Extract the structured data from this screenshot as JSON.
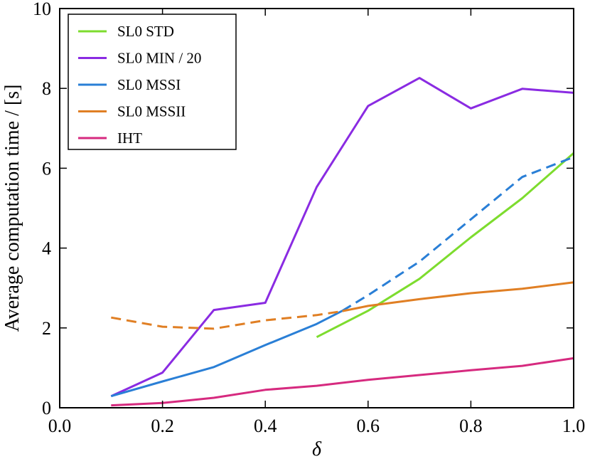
{
  "chart_data": {
    "type": "line",
    "title": "",
    "xlabel": "δ",
    "ylabel": "Average computation time / [s]",
    "xlim": [
      0.0,
      1.0
    ],
    "ylim": [
      0,
      10
    ],
    "xticks": [
      0.0,
      0.2,
      0.4,
      0.6,
      0.8,
      1.0
    ],
    "xtick_labels": [
      "0.0",
      "0.2",
      "0.4",
      "0.6",
      "0.8",
      "1.0"
    ],
    "yticks": [
      0,
      2,
      4,
      6,
      8,
      10
    ],
    "ytick_labels": [
      "0",
      "2",
      "4",
      "6",
      "8",
      "10"
    ],
    "grid": false,
    "legend_position": "top-left",
    "series": [
      {
        "name": "SL0 STD",
        "color": "#7ddc2e",
        "segments": [
          {
            "style": "solid",
            "x": [
              0.5,
              0.6,
              0.7,
              0.8,
              0.9,
              1.0
            ],
            "y": [
              1.77,
              2.43,
              3.23,
              4.27,
              5.25,
              6.38
            ]
          }
        ]
      },
      {
        "name": "SL0 MIN / 20",
        "color": "#8a2be2",
        "segments": [
          {
            "style": "solid",
            "x": [
              0.1,
              0.2,
              0.3,
              0.4,
              0.5,
              0.6,
              0.7,
              0.8,
              0.9,
              1.0
            ],
            "y": [
              0.29,
              0.88,
              2.45,
              2.63,
              5.53,
              7.56,
              8.26,
              7.5,
              7.99,
              7.89
            ]
          }
        ]
      },
      {
        "name": "SL0 MSSI",
        "color": "#2a7fd6",
        "segments": [
          {
            "style": "solid",
            "x": [
              0.1,
              0.2,
              0.3,
              0.4,
              0.5,
              0.55
            ],
            "y": [
              0.29,
              0.66,
              1.02,
              1.57,
              2.1,
              2.43
            ]
          },
          {
            "style": "dashed",
            "x": [
              0.55,
              0.6,
              0.7,
              0.8,
              0.9,
              1.0
            ],
            "y": [
              2.43,
              2.82,
              3.66,
              4.72,
              5.78,
              6.28
            ]
          }
        ]
      },
      {
        "name": "SL0 MSSII",
        "color": "#e07f24",
        "segments": [
          {
            "style": "dashed",
            "x": [
              0.1,
              0.2,
              0.3,
              0.4,
              0.5,
              0.55
            ],
            "y": [
              2.26,
              2.03,
              1.98,
              2.19,
              2.32,
              2.42
            ]
          },
          {
            "style": "solid",
            "x": [
              0.55,
              0.6,
              0.7,
              0.8,
              0.9,
              1.0
            ],
            "y": [
              2.42,
              2.55,
              2.72,
              2.87,
              2.98,
              3.14
            ]
          }
        ]
      },
      {
        "name": "IHT",
        "color": "#d62a7f",
        "segments": [
          {
            "style": "solid",
            "x": [
              0.1,
              0.2,
              0.3,
              0.4,
              0.5,
              0.6,
              0.7,
              0.8,
              0.9,
              1.0
            ],
            "y": [
              0.06,
              0.12,
              0.25,
              0.45,
              0.55,
              0.7,
              0.82,
              0.94,
              1.05,
              1.24
            ]
          }
        ]
      }
    ]
  }
}
